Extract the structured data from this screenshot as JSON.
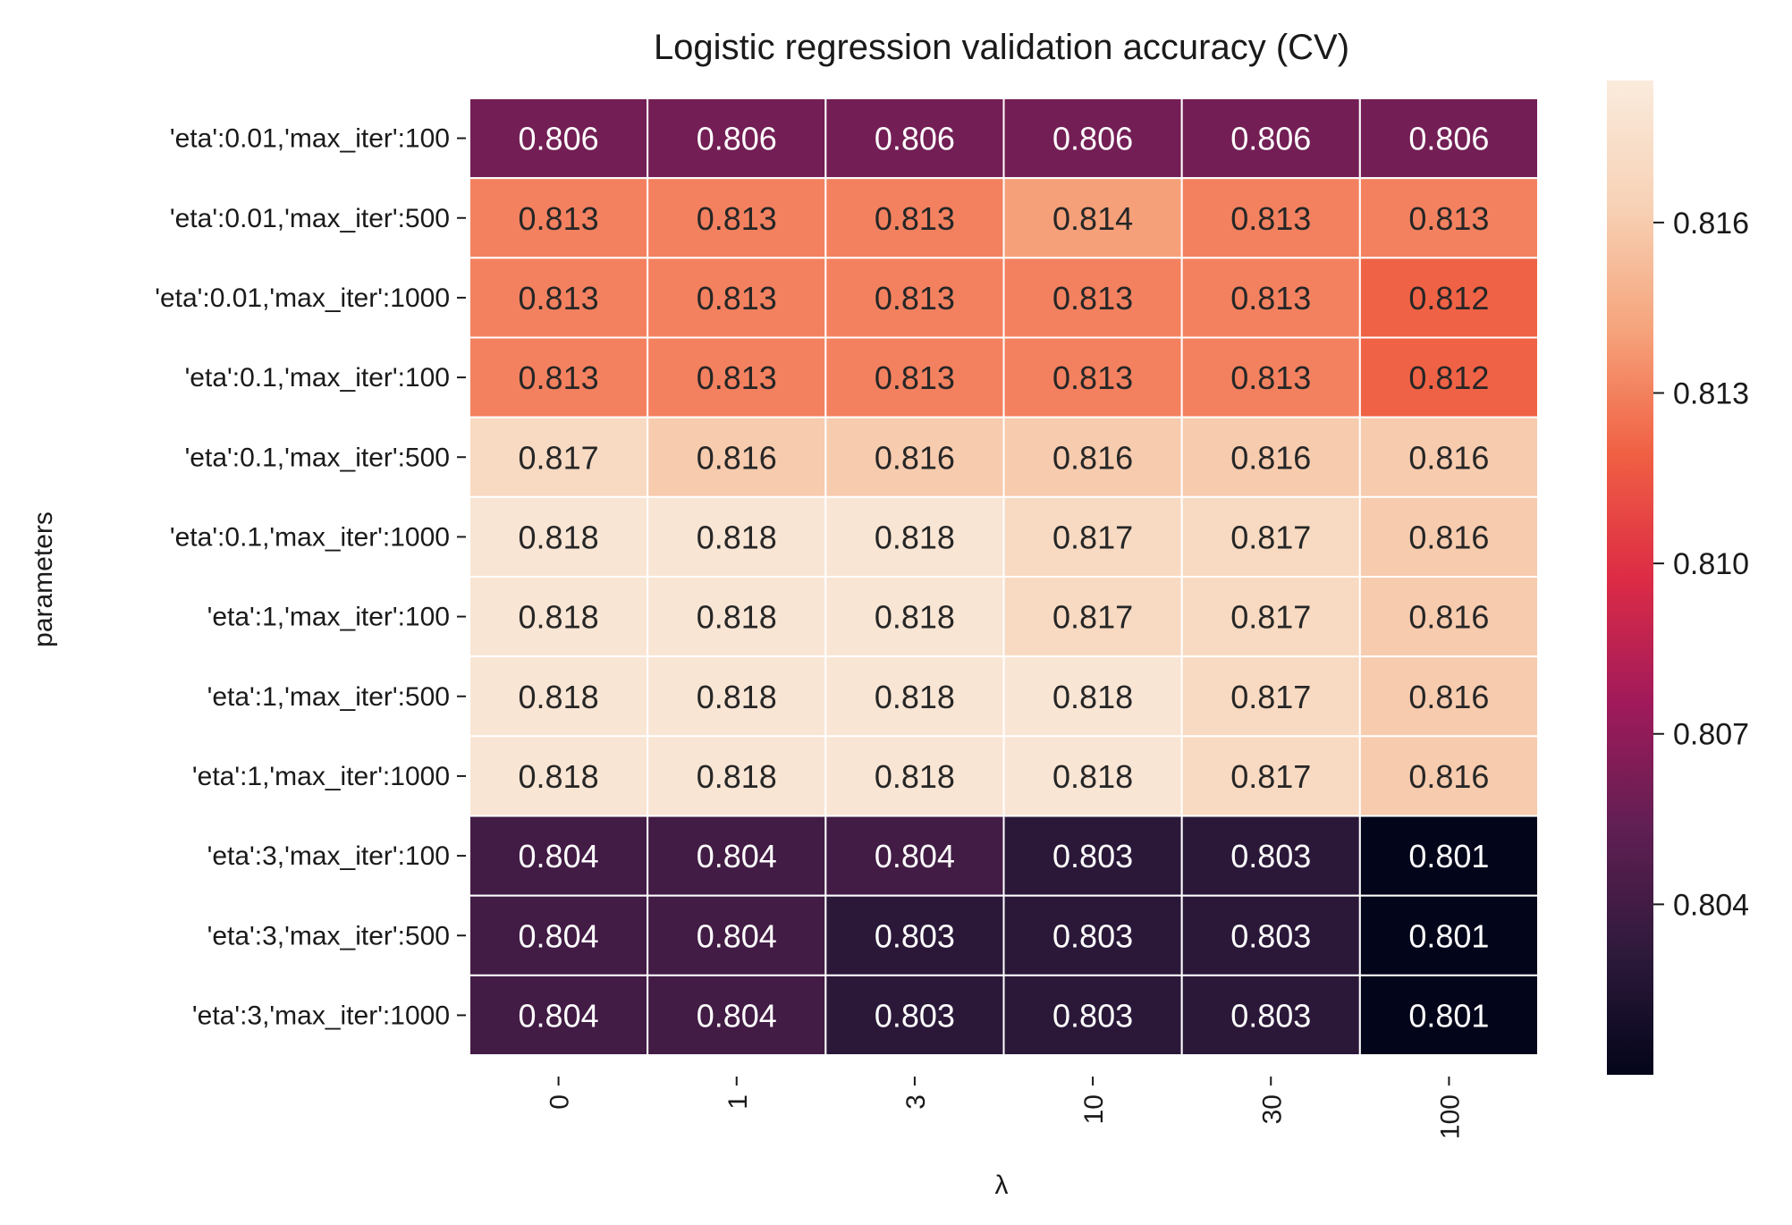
{
  "chart_data": {
    "type": "heatmap",
    "title": "Logistic regression validation accuracy (CV)",
    "xlabel": "λ",
    "ylabel": "parameters",
    "x_categories": [
      "0",
      "1",
      "3",
      "10",
      "30",
      "100"
    ],
    "y_categories": [
      "'eta':0.01,'max_iter':100",
      "'eta':0.01,'max_iter':500",
      "'eta':0.01,'max_iter':1000",
      "'eta':0.1,'max_iter':100",
      "'eta':0.1,'max_iter':500",
      "'eta':0.1,'max_iter':1000",
      "'eta':1,'max_iter':100",
      "'eta':1,'max_iter':500",
      "'eta':1,'max_iter':1000",
      "'eta':3,'max_iter':100",
      "'eta':3,'max_iter':500",
      "'eta':3,'max_iter':1000"
    ],
    "values": [
      [
        0.806,
        0.806,
        0.806,
        0.806,
        0.806,
        0.806
      ],
      [
        0.813,
        0.813,
        0.813,
        0.814,
        0.813,
        0.813
      ],
      [
        0.813,
        0.813,
        0.813,
        0.813,
        0.813,
        0.812
      ],
      [
        0.813,
        0.813,
        0.813,
        0.813,
        0.813,
        0.812
      ],
      [
        0.817,
        0.816,
        0.816,
        0.816,
        0.816,
        0.816
      ],
      [
        0.818,
        0.818,
        0.818,
        0.817,
        0.817,
        0.816
      ],
      [
        0.818,
        0.818,
        0.818,
        0.817,
        0.817,
        0.816
      ],
      [
        0.818,
        0.818,
        0.818,
        0.818,
        0.817,
        0.816
      ],
      [
        0.818,
        0.818,
        0.818,
        0.818,
        0.817,
        0.816
      ],
      [
        0.804,
        0.804,
        0.804,
        0.803,
        0.803,
        0.801
      ],
      [
        0.804,
        0.804,
        0.803,
        0.803,
        0.803,
        0.801
      ],
      [
        0.804,
        0.804,
        0.803,
        0.803,
        0.803,
        0.801
      ]
    ],
    "cell_labels": [
      [
        "0.806",
        "0.806",
        "0.806",
        "0.806",
        "0.806",
        "0.806"
      ],
      [
        "0.813",
        "0.813",
        "0.813",
        "0.814",
        "0.813",
        "0.813"
      ],
      [
        "0.813",
        "0.813",
        "0.813",
        "0.813",
        "0.813",
        "0.812"
      ],
      [
        "0.813",
        "0.813",
        "0.813",
        "0.813",
        "0.813",
        "0.812"
      ],
      [
        "0.817",
        "0.816",
        "0.816",
        "0.816",
        "0.816",
        "0.816"
      ],
      [
        "0.818",
        "0.818",
        "0.818",
        "0.817",
        "0.817",
        "0.816"
      ],
      [
        "0.818",
        "0.818",
        "0.818",
        "0.817",
        "0.817",
        "0.816"
      ],
      [
        "0.818",
        "0.818",
        "0.818",
        "0.818",
        "0.817",
        "0.816"
      ],
      [
        "0.818",
        "0.818",
        "0.818",
        "0.818",
        "0.817",
        "0.816"
      ],
      [
        "0.804",
        "0.804",
        "0.804",
        "0.803",
        "0.803",
        "0.801"
      ],
      [
        "0.804",
        "0.804",
        "0.803",
        "0.803",
        "0.803",
        "0.801"
      ],
      [
        "0.804",
        "0.804",
        "0.803",
        "0.803",
        "0.803",
        "0.801"
      ]
    ],
    "colorbar": {
      "range": [
        0.801,
        0.8185
      ],
      "ticks": [
        0.804,
        0.807,
        0.81,
        0.813,
        0.816
      ],
      "tick_labels": [
        "0.804",
        "0.807",
        "0.810",
        "0.813",
        "0.816"
      ],
      "colormap": "rocket",
      "colormap_stops": [
        "#03051a",
        "#2f1a3c",
        "#611f53",
        "#a11a5b",
        "#dd2c45",
        "#f06043",
        "#f6a47c",
        "#f7d2b6",
        "#faebdd"
      ]
    },
    "grid": false,
    "legend": "colorbar-right",
    "cell_separator_color": "#ffffff"
  }
}
